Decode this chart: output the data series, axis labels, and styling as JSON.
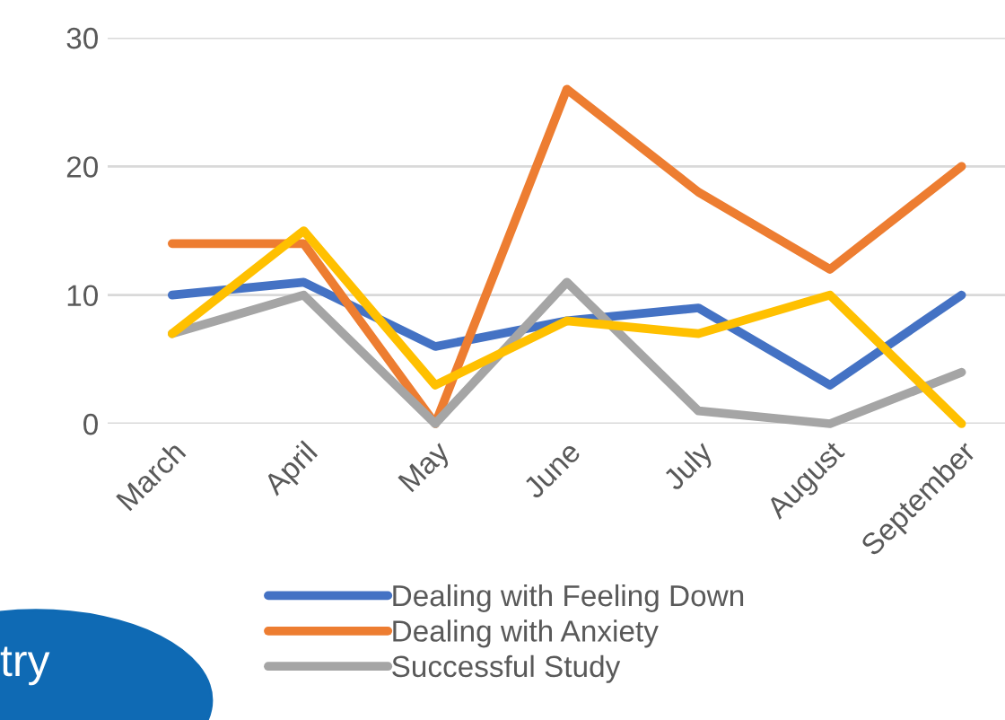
{
  "chart_data": {
    "type": "line",
    "categories": [
      "March",
      "April",
      "May",
      "June",
      "July",
      "August",
      "September"
    ],
    "series": [
      {
        "name": "Dealing with Feeling Down",
        "color": "#4472c4",
        "values": [
          10,
          11,
          6,
          8,
          9,
          3,
          10
        ]
      },
      {
        "name": "Dealing with Anxiety",
        "color": "#ed7d31",
        "values": [
          14,
          14,
          0,
          26,
          18,
          12,
          20
        ]
      },
      {
        "name": "Successful Study",
        "color": "#a5a5a5",
        "values": [
          7,
          10,
          0,
          11,
          1,
          0,
          4
        ]
      },
      {
        "color": "#ffc000",
        "values": [
          7,
          15,
          3,
          8,
          7,
          10,
          0
        ]
      }
    ],
    "ylim": [
      0,
      30
    ],
    "yticks": [
      0,
      10,
      20,
      30
    ],
    "grid": "y",
    "legend": "bottom",
    "marker": "none",
    "line_style": "solid",
    "annotations": [
      "try"
    ]
  }
}
